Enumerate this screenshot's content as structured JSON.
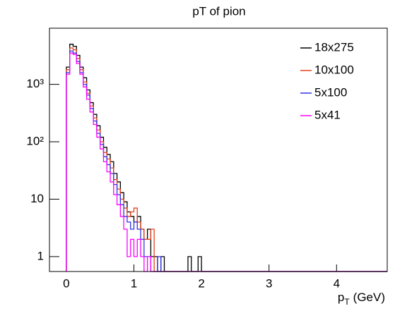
{
  "chart_data": {
    "type": "histogram",
    "title": "pT of pion",
    "x_label": [
      "p",
      "T",
      "(GeV)"
    ],
    "log_y": true,
    "xlim": [
      -0.25,
      4.75
    ],
    "xticks": [
      0,
      1,
      2,
      3,
      4
    ],
    "ylim": [
      0.55,
      9500
    ],
    "yticks": [
      1,
      10,
      {
        "value": 100,
        "label": "10²"
      },
      {
        "value": 1000,
        "label": "10³"
      }
    ],
    "legend": "top-right",
    "bins": [
      0,
      0.05,
      0.1,
      0.15,
      0.2,
      0.25,
      0.3,
      0.35,
      0.4,
      0.45,
      0.5,
      0.55,
      0.6,
      0.65,
      0.7,
      0.75,
      0.8,
      0.85,
      0.9,
      0.95,
      1,
      1.05,
      1.1,
      1.15,
      1.2,
      1.25,
      1.3,
      1.35,
      1.4,
      1.45,
      1.5,
      1.55,
      1.6,
      1.65,
      1.7,
      1.75,
      1.8,
      1.85,
      1.9,
      1.95,
      2,
      2.05,
      2.1,
      2.15,
      2.2,
      2.25,
      2.3,
      2.35,
      2.4,
      2.45,
      2.5,
      2.55,
      2.6,
      2.65,
      2.7,
      2.75,
      2.8,
      2.85,
      2.9,
      2.95,
      3,
      3.05,
      3.1,
      3.15,
      3.2,
      3.25,
      3.3,
      3.35,
      3.4,
      3.45,
      3.5,
      3.55,
      3.6,
      3.65,
      3.7,
      3.75,
      3.8,
      3.85,
      3.9,
      3.95,
      4,
      4.05,
      4.1,
      4.15,
      4.2,
      4.25,
      4.3,
      4.35,
      4.4,
      4.45,
      4.5,
      4.55,
      4.6,
      4.65,
      4.7,
      4.75
    ],
    "series": [
      {
        "name": "18x275",
        "color": "#000000",
        "values": [
          2000,
          5000,
          4600,
          3200,
          2000,
          1300,
          800,
          480,
          300,
          190,
          120,
          80,
          60,
          45,
          28,
          20,
          13,
          9,
          6,
          5,
          4,
          5,
          3,
          2,
          3,
          1,
          1,
          0,
          1,
          0,
          0,
          0,
          0,
          0,
          0,
          0,
          1,
          0,
          0,
          1,
          0,
          0,
          0,
          0,
          0,
          0,
          0,
          0,
          0,
          0,
          0,
          0,
          0,
          0,
          0,
          0,
          0,
          0,
          0,
          0,
          0,
          0,
          0,
          0,
          0,
          0,
          0,
          0,
          0,
          0,
          0,
          0,
          0,
          0,
          0,
          0,
          0,
          0,
          0,
          0,
          0,
          0,
          0,
          0,
          0,
          0,
          0,
          0,
          0,
          0,
          0,
          0,
          0,
          0,
          0
        ]
      },
      {
        "name": "10x100",
        "color": "#e2431e",
        "values": [
          1800,
          4300,
          4000,
          2800,
          1800,
          1100,
          700,
          420,
          260,
          160,
          100,
          65,
          50,
          35,
          22,
          15,
          10,
          7,
          5,
          6,
          7,
          4,
          3,
          2,
          2,
          3,
          0,
          0,
          0,
          0,
          0,
          0,
          0,
          0,
          0,
          0,
          0,
          0,
          0,
          0,
          0,
          0,
          0,
          0,
          0,
          0,
          0,
          0,
          0,
          0,
          0,
          0,
          0,
          0,
          0,
          0,
          0,
          0,
          0,
          0,
          0,
          0,
          0,
          0,
          0,
          0,
          0,
          0,
          0,
          0,
          0,
          0,
          0,
          0,
          0,
          0,
          0,
          0,
          0,
          0,
          0,
          0,
          0,
          0,
          0,
          0,
          0,
          0,
          0,
          0,
          0,
          0,
          0,
          0,
          0
        ]
      },
      {
        "name": "5x100",
        "color": "#3333e6",
        "values": [
          1600,
          3800,
          3500,
          2500,
          1600,
          1000,
          650,
          380,
          230,
          140,
          90,
          55,
          40,
          28,
          18,
          12,
          8,
          5,
          4,
          3,
          4,
          3,
          2,
          1,
          1,
          0,
          0,
          1,
          0,
          0,
          0,
          0,
          0,
          0,
          0,
          0,
          0,
          0,
          0,
          0,
          0,
          0,
          0,
          0,
          0,
          0,
          0,
          0,
          0,
          0,
          0,
          0,
          0,
          0,
          0,
          0,
          0,
          0,
          0,
          0,
          0,
          0,
          0,
          0,
          0,
          0,
          0,
          0,
          0,
          0,
          0,
          0,
          0,
          0,
          0,
          0,
          0,
          0,
          0,
          0,
          0,
          0,
          0,
          0,
          0,
          0,
          0,
          0,
          0,
          0,
          0,
          0,
          0,
          0,
          0
        ]
      },
      {
        "name": "5x41",
        "color": "#ff00ff",
        "values": [
          1500,
          3500,
          3300,
          2300,
          1500,
          900,
          550,
          330,
          200,
          120,
          75,
          45,
          30,
          20,
          12,
          8,
          5,
          3,
          1,
          2,
          1,
          2,
          1,
          0,
          1,
          0,
          0,
          0,
          0,
          0,
          0,
          0,
          0,
          0,
          0,
          0,
          0,
          0,
          0,
          0,
          0,
          0,
          0,
          0,
          0,
          0,
          0,
          0,
          0,
          0,
          0,
          0,
          0,
          0,
          0,
          0,
          0,
          0,
          0,
          0,
          0,
          0,
          0,
          0,
          0,
          0,
          0,
          0,
          0,
          0,
          0,
          0,
          0,
          0,
          0,
          0,
          0,
          0,
          0,
          0,
          0,
          0,
          0,
          0,
          0,
          0,
          0,
          0,
          0,
          0,
          0,
          0,
          0,
          0,
          0
        ]
      }
    ]
  }
}
